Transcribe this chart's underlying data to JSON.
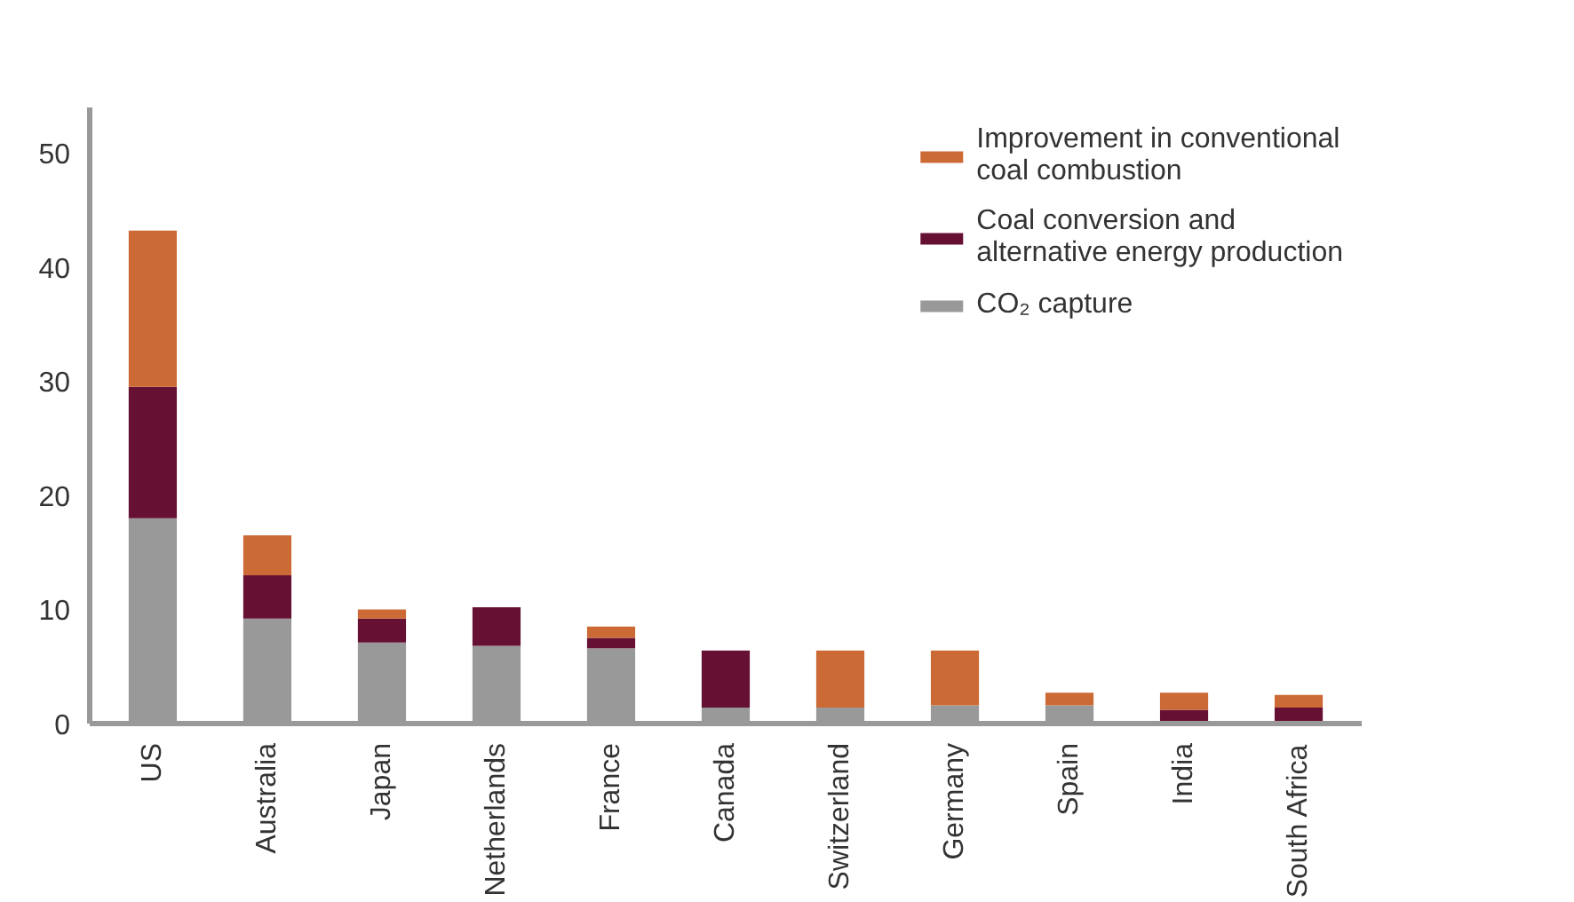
{
  "chart_data": {
    "type": "bar",
    "stacked": true,
    "categories": [
      "US",
      "Australia",
      "Japan",
      "Netherlands",
      "France",
      "Canada",
      "Switzerland",
      "Germany",
      "Spain",
      "India",
      "South Africa"
    ],
    "series": [
      {
        "name": "CO₂ capture",
        "color": "#999999",
        "values": [
          18,
          9.2,
          7.1,
          6.8,
          6.6,
          1.4,
          1.4,
          1.6,
          1.6,
          0.2,
          0.2
        ]
      },
      {
        "name": "Coal conversion and alternative energy production",
        "color": "#661034",
        "values": [
          11.5,
          3.8,
          2.1,
          3.4,
          0.9,
          5,
          null,
          null,
          null,
          1,
          1.2
        ]
      },
      {
        "name": "Improvement in conventional coal combustion",
        "color": "#cc6a35",
        "values": [
          13.7,
          3.5,
          0.8,
          null,
          1,
          null,
          5,
          4.8,
          1.1,
          1.5,
          1.1
        ]
      }
    ],
    "ylim": [
      0,
      54
    ],
    "yticks": [
      0,
      10,
      20,
      30,
      40,
      50
    ],
    "grid": false,
    "legend": "top right"
  }
}
